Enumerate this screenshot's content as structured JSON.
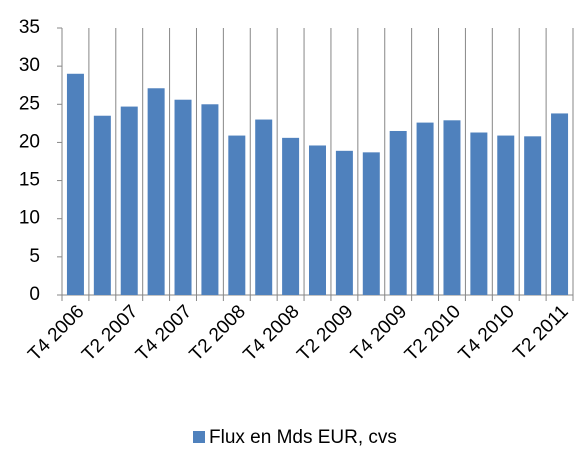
{
  "chart_data": {
    "type": "bar",
    "categories": [
      "T4 2006",
      null,
      "T2 2007",
      null,
      "T4 2007",
      null,
      "T2 2008",
      null,
      "T4 2008",
      null,
      "T2 2009",
      null,
      "T4 2009",
      null,
      "T2 2010",
      null,
      "T4 2010",
      null,
      "T2 2011"
    ],
    "series": [
      {
        "name": "Flux en Mds EUR, cvs",
        "color": "#4f81bd",
        "values": [
          29.0,
          23.5,
          24.7,
          27.1,
          25.6,
          25.0,
          20.9,
          23.0,
          20.6,
          19.6,
          18.9,
          18.7,
          21.5,
          22.6,
          22.9,
          21.3,
          20.9,
          20.8,
          23.8
        ]
      }
    ],
    "ylim": [
      0,
      35
    ],
    "yticks": [
      0,
      5,
      10,
      15,
      20,
      25,
      30,
      35
    ],
    "grid": true,
    "legend": "bottom"
  }
}
